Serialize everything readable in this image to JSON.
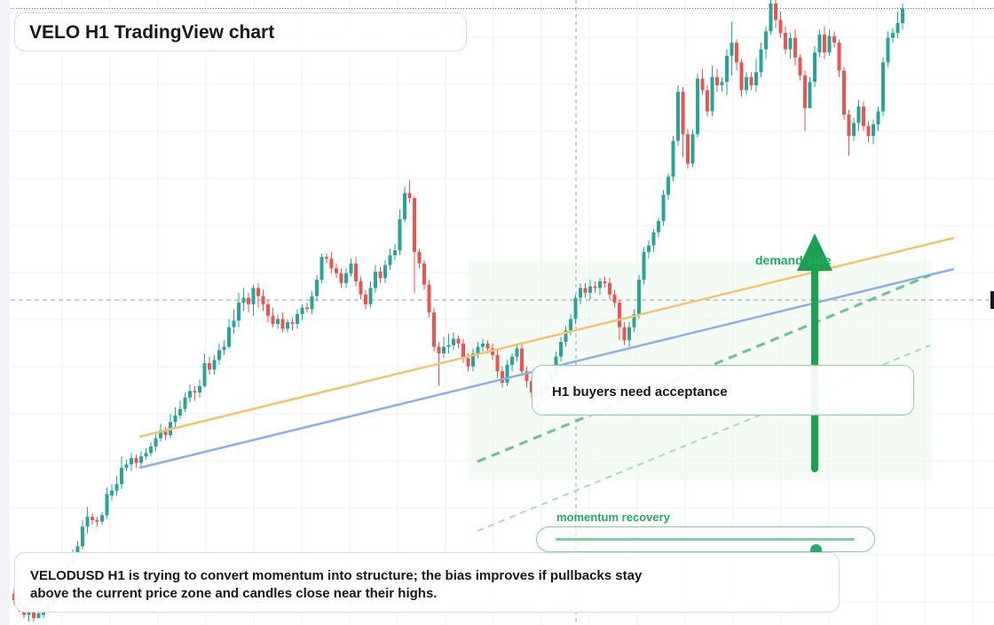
{
  "title": "VELO H1 TradingView chart",
  "note": "VELODUSD H1 is trying to convert momentum into structure; the bias improves if pullbacks stay above the current price zone and candles close near their highs.",
  "callout": "H1 buyers need acceptance",
  "demand_label": "demand side",
  "momentum": {
    "label": "momentum recovery",
    "level": 0.87
  },
  "colors": {
    "up": "#26a69a",
    "down": "#ef5350",
    "trend_orange": "#f5c46a",
    "trend_blue": "#8ab0ea",
    "bullish_green": "#1aa251",
    "grid": "#eceff3"
  },
  "chart_data": {
    "type": "candlestick",
    "title": "",
    "xlabel": "",
    "ylabel": "",
    "candles": [
      [
        1.3,
        0.9,
        1.6,
        0.6
      ],
      [
        1.0,
        0.6,
        1.3,
        0.2
      ],
      [
        0.6,
        0.0,
        0.8,
        -0.2
      ],
      [
        0.0,
        0.3,
        0.6,
        -0.4
      ],
      [
        0.2,
        -0.2,
        0.8,
        -0.4
      ],
      [
        -0.2,
        0.1,
        0.5,
        -0.2
      ],
      [
        0.0,
        0.3,
        0.5,
        -0.2
      ],
      [
        0.3,
        0.6,
        1.0,
        0.2
      ],
      [
        0.6,
        0.9,
        1.3,
        0.6
      ],
      [
        1.0,
        1.6,
        2.0,
        0.8
      ],
      [
        1.6,
        2.2,
        2.5,
        1.3
      ],
      [
        2.2,
        3.0,
        3.3,
        1.9
      ],
      [
        3.1,
        3.7,
        4.0,
        2.9
      ],
      [
        3.8,
        4.2,
        4.5,
        3.5
      ],
      [
        4.2,
        5.4,
        5.8,
        4.0
      ],
      [
        5.4,
        6.0,
        6.6,
        5.0
      ],
      [
        6.0,
        5.8,
        6.2,
        5.5
      ],
      [
        5.8,
        5.7,
        6.0,
        5.4
      ],
      [
        5.7,
        6.1,
        6.3,
        5.5
      ],
      [
        6.1,
        7.4,
        7.8,
        5.9
      ],
      [
        7.3,
        7.6,
        8.0,
        7.0
      ],
      [
        7.6,
        8.0,
        8.5,
        7.3
      ],
      [
        8.0,
        9.0,
        9.7,
        7.7
      ],
      [
        9.0,
        9.2,
        9.5,
        8.8
      ],
      [
        9.2,
        9.6,
        9.9,
        8.8
      ],
      [
        9.6,
        9.3,
        9.8,
        9.0
      ],
      [
        9.3,
        9.7,
        10.0,
        9.1
      ],
      [
        9.7,
        9.9,
        10.2,
        9.5
      ],
      [
        9.9,
        10.3,
        10.6,
        9.7
      ],
      [
        10.3,
        10.8,
        11.2,
        10.0
      ],
      [
        10.8,
        11.3,
        11.7,
        10.6
      ],
      [
        11.3,
        11.0,
        11.5,
        10.7
      ],
      [
        11.0,
        11.8,
        12.3,
        10.8
      ],
      [
        11.8,
        12.2,
        12.7,
        11.5
      ],
      [
        12.2,
        12.6,
        13.1,
        12.0
      ],
      [
        12.6,
        13.3,
        13.6,
        12.4
      ],
      [
        13.3,
        13.7,
        14.1,
        13.0
      ],
      [
        13.7,
        13.6,
        14.0,
        13.1
      ],
      [
        13.6,
        14.0,
        14.4,
        13.3
      ],
      [
        14.0,
        15.4,
        16.0,
        13.9
      ],
      [
        15.4,
        15.0,
        15.8,
        14.7
      ],
      [
        15.0,
        15.6,
        15.9,
        14.7
      ],
      [
        15.6,
        16.2,
        16.6,
        15.3
      ],
      [
        16.2,
        16.4,
        16.8,
        15.9
      ],
      [
        16.4,
        17.6,
        18.1,
        16.3
      ],
      [
        17.6,
        18.0,
        18.7,
        17.2
      ],
      [
        18.0,
        19.1,
        19.7,
        17.6
      ],
      [
        19.1,
        19.4,
        20.0,
        18.6
      ],
      [
        19.4,
        19.0,
        19.7,
        18.5
      ],
      [
        19.0,
        20.0,
        20.2,
        18.3
      ],
      [
        20.0,
        19.5,
        20.3,
        18.8
      ],
      [
        19.5,
        19.0,
        19.9,
        18.6
      ],
      [
        19.0,
        18.3,
        19.3,
        17.9
      ],
      [
        18.3,
        17.8,
        18.8,
        17.6
      ],
      [
        17.8,
        18.1,
        18.4,
        17.5
      ],
      [
        18.1,
        17.5,
        18.5,
        17.3
      ],
      [
        17.5,
        17.9,
        18.1,
        17.3
      ],
      [
        17.9,
        17.8,
        18.2,
        17.4
      ],
      [
        17.8,
        18.4,
        18.7,
        17.5
      ],
      [
        18.4,
        18.8,
        19.0,
        18.0
      ],
      [
        18.8,
        18.7,
        19.1,
        18.5
      ],
      [
        18.7,
        19.5,
        19.8,
        18.4
      ],
      [
        19.5,
        20.5,
        20.8,
        19.2
      ],
      [
        20.5,
        21.9,
        22.1,
        20.3
      ],
      [
        21.9,
        21.8,
        22.1,
        21.5
      ],
      [
        21.8,
        21.2,
        22.2,
        20.9
      ],
      [
        21.2,
        20.9,
        21.5,
        20.6
      ],
      [
        20.9,
        20.3,
        21.2,
        20.0
      ],
      [
        20.3,
        20.9,
        21.2,
        20.0
      ],
      [
        20.9,
        21.5,
        21.8,
        20.7
      ],
      [
        21.5,
        20.4,
        21.9,
        20.1
      ],
      [
        20.4,
        19.6,
        20.7,
        19.3
      ],
      [
        19.6,
        19.0,
        19.9,
        18.7
      ],
      [
        19.0,
        20.0,
        20.4,
        18.8
      ],
      [
        20.0,
        21.0,
        21.4,
        19.7
      ],
      [
        21.0,
        20.6,
        21.3,
        20.3
      ],
      [
        20.6,
        21.4,
        21.7,
        20.3
      ],
      [
        21.4,
        22.0,
        22.4,
        21.1
      ],
      [
        22.0,
        22.3,
        22.7,
        21.7
      ],
      [
        22.3,
        24.2,
        24.8,
        22.0
      ],
      [
        24.2,
        25.8,
        26.2,
        24.0
      ],
      [
        25.8,
        25.5,
        26.6,
        25.2
      ],
      [
        25.5,
        22.2,
        25.6,
        19.7
      ],
      [
        22.2,
        21.5,
        22.4,
        21.2
      ],
      [
        21.5,
        20.2,
        21.7,
        19.9
      ],
      [
        20.2,
        18.5,
        20.5,
        18.2
      ],
      [
        18.5,
        16.4,
        18.8,
        16.1
      ],
      [
        16.4,
        16.0,
        16.7,
        14.0
      ],
      [
        16.0,
        16.4,
        17.0,
        15.7
      ],
      [
        16.4,
        16.5,
        17.2,
        16.0
      ],
      [
        16.5,
        16.9,
        17.3,
        16.2
      ],
      [
        16.9,
        16.6,
        17.1,
        16.3
      ],
      [
        16.6,
        15.7,
        16.9,
        15.4
      ],
      [
        15.7,
        15.2,
        16.0,
        14.9
      ],
      [
        15.2,
        16.0,
        16.3,
        14.9
      ],
      [
        16.0,
        16.4,
        16.7,
        15.7
      ],
      [
        16.4,
        16.6,
        16.9,
        16.1
      ],
      [
        16.6,
        16.3,
        16.8,
        16.0
      ],
      [
        16.3,
        15.9,
        16.6,
        15.6
      ],
      [
        15.9,
        14.9,
        16.2,
        14.5
      ],
      [
        14.9,
        14.2,
        15.2,
        13.9
      ],
      [
        14.2,
        15.3,
        15.6,
        14.0
      ],
      [
        15.3,
        15.8,
        16.0,
        14.9
      ],
      [
        15.8,
        16.3,
        16.6,
        15.5
      ],
      [
        16.3,
        14.9,
        16.6,
        14.6
      ],
      [
        14.9,
        14.3,
        15.2,
        13.9
      ],
      [
        14.3,
        13.6,
        14.5,
        13.3
      ],
      [
        13.6,
        13.3,
        13.9,
        13.0
      ],
      [
        13.3,
        13.7,
        14.0,
        12.9
      ],
      [
        13.7,
        14.3,
        14.6,
        13.5
      ],
      [
        14.3,
        14.7,
        15.0,
        14.0
      ],
      [
        14.7,
        15.8,
        16.1,
        14.5
      ],
      [
        15.8,
        16.7,
        17.0,
        15.5
      ],
      [
        16.7,
        17.4,
        17.7,
        16.4
      ],
      [
        17.4,
        18.1,
        18.4,
        17.1
      ],
      [
        18.1,
        19.4,
        19.6,
        17.8
      ],
      [
        19.4,
        20.0,
        20.3,
        19.0
      ],
      [
        20.0,
        19.7,
        20.3,
        19.4
      ],
      [
        19.7,
        20.1,
        20.5,
        19.3
      ],
      [
        20.1,
        20.0,
        20.4,
        19.7
      ],
      [
        20.0,
        20.4,
        20.6,
        19.6
      ],
      [
        20.4,
        20.3,
        20.7,
        20.0
      ],
      [
        20.3,
        19.6,
        20.6,
        19.3
      ],
      [
        19.6,
        19.1,
        19.9,
        18.8
      ],
      [
        19.1,
        17.6,
        19.3,
        16.8
      ],
      [
        17.6,
        16.8,
        17.9,
        16.5
      ],
      [
        16.8,
        17.6,
        17.9,
        16.4
      ],
      [
        17.6,
        18.4,
        18.7,
        17.3
      ],
      [
        18.4,
        20.5,
        20.8,
        18.1
      ],
      [
        20.5,
        22.2,
        22.5,
        20.2
      ],
      [
        22.2,
        22.6,
        22.9,
        21.8
      ],
      [
        22.6,
        23.4,
        23.6,
        22.2
      ],
      [
        23.4,
        24.1,
        24.3,
        23.1
      ],
      [
        24.1,
        25.7,
        26.0,
        23.8
      ],
      [
        25.7,
        26.8,
        27.0,
        25.4
      ],
      [
        26.8,
        29.0,
        29.3,
        26.5
      ],
      [
        29.0,
        32.0,
        32.4,
        28.7
      ],
      [
        32.0,
        29.4,
        32.3,
        28.0
      ],
      [
        29.4,
        27.6,
        29.7,
        27.3
      ],
      [
        27.6,
        29.4,
        29.7,
        27.4
      ],
      [
        29.4,
        32.8,
        33.1,
        29.2
      ],
      [
        32.8,
        32.1,
        33.4,
        31.8
      ],
      [
        32.1,
        30.8,
        32.4,
        30.5
      ],
      [
        30.8,
        32.9,
        33.6,
        30.5
      ],
      [
        32.9,
        32.4,
        33.4,
        32.0
      ],
      [
        32.4,
        32.6,
        32.9,
        32.0
      ],
      [
        32.6,
        34.2,
        34.6,
        31.8
      ],
      [
        34.2,
        35.0,
        36.3,
        33.0
      ],
      [
        35.0,
        33.8,
        35.2,
        33.3
      ],
      [
        33.8,
        32.1,
        34.0,
        31.7
      ],
      [
        32.1,
        32.9,
        33.2,
        31.8
      ],
      [
        32.9,
        32.4,
        33.2,
        32.1
      ],
      [
        32.4,
        33.2,
        34.0,
        32.0
      ],
      [
        33.2,
        34.6,
        35.0,
        32.9
      ],
      [
        34.6,
        35.7,
        36.0,
        34.0
      ],
      [
        35.7,
        37.4,
        37.8,
        35.5
      ],
      [
        37.4,
        36.4,
        38.1,
        35.9
      ],
      [
        36.4,
        35.6,
        36.9,
        35.3
      ],
      [
        35.6,
        34.6,
        36.0,
        34.3
      ],
      [
        34.6,
        35.3,
        35.6,
        34.0
      ],
      [
        35.3,
        34.1,
        35.8,
        33.6
      ],
      [
        34.1,
        33.0,
        34.3,
        32.7
      ],
      [
        33.0,
        31.0,
        33.3,
        29.6
      ],
      [
        31.0,
        32.6,
        32.9,
        31.6
      ],
      [
        32.6,
        34.4,
        34.8,
        32.3
      ],
      [
        34.4,
        35.5,
        35.8,
        34.1
      ],
      [
        35.5,
        34.4,
        36.0,
        34.0
      ],
      [
        34.4,
        35.4,
        35.8,
        34.2
      ],
      [
        35.4,
        35.0,
        35.7,
        34.7
      ],
      [
        35.0,
        33.3,
        35.2,
        32.9
      ],
      [
        33.3,
        30.6,
        33.5,
        30.3
      ],
      [
        30.6,
        29.3,
        30.9,
        28.1
      ],
      [
        29.3,
        30.1,
        30.4,
        29.0
      ],
      [
        30.1,
        31.1,
        31.5,
        29.6
      ],
      [
        31.1,
        29.9,
        31.4,
        29.6
      ],
      [
        29.9,
        29.3,
        30.2,
        28.9
      ],
      [
        29.3,
        30.0,
        30.3,
        28.8
      ],
      [
        30.0,
        30.8,
        31.1,
        29.6
      ],
      [
        30.8,
        33.8,
        34.1,
        30.5
      ],
      [
        33.8,
        35.3,
        35.7,
        33.5
      ],
      [
        35.3,
        35.6,
        35.9,
        35.0
      ],
      [
        35.6,
        36.2,
        36.9,
        35.3
      ],
      [
        36.2,
        37.1,
        37.4,
        35.8
      ]
    ]
  }
}
